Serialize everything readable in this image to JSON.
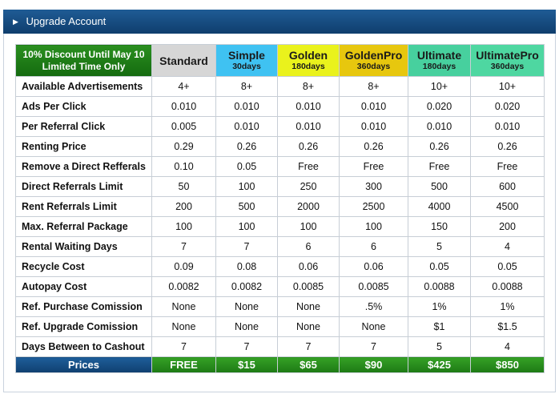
{
  "window": {
    "title": "Upgrade Account"
  },
  "colors": {
    "header_bar": "#164c82",
    "promo_green": "#1f7e16",
    "prices_blue": "#174e85"
  },
  "promo": {
    "line1": "10% Discount Until May 10",
    "line2": "Limited Time Only"
  },
  "plans": [
    {
      "name": "Standard",
      "days": ""
    },
    {
      "name": "Simple",
      "days": "30days"
    },
    {
      "name": "Golden",
      "days": "180days"
    },
    {
      "name": "GoldenPro",
      "days": "360days"
    },
    {
      "name": "Ultimate",
      "days": "180days"
    },
    {
      "name": "UltimatePro",
      "days": "360days"
    }
  ],
  "rows": [
    {
      "label": "Available Advertisements",
      "values": [
        "4+",
        "8+",
        "8+",
        "8+",
        "10+",
        "10+"
      ]
    },
    {
      "label": "Ads Per Click",
      "values": [
        "0.010",
        "0.010",
        "0.010",
        "0.010",
        "0.020",
        "0.020"
      ]
    },
    {
      "label": "Per Referral Click",
      "values": [
        "0.005",
        "0.010",
        "0.010",
        "0.010",
        "0.010",
        "0.010"
      ]
    },
    {
      "label": "Renting Price",
      "values": [
        "0.29",
        "0.26",
        "0.26",
        "0.26",
        "0.26",
        "0.26"
      ]
    },
    {
      "label": "Remove a Direct Refferals",
      "values": [
        "0.10",
        "0.05",
        "Free",
        "Free",
        "Free",
        "Free"
      ]
    },
    {
      "label": "Direct Referrals Limit",
      "values": [
        "50",
        "100",
        "250",
        "300",
        "500",
        "600"
      ]
    },
    {
      "label": "Rent Referrals Limit",
      "values": [
        "200",
        "500",
        "2000",
        "2500",
        "4000",
        "4500"
      ]
    },
    {
      "label": "Max. Referral Package",
      "values": [
        "100",
        "100",
        "100",
        "100",
        "150",
        "200"
      ]
    },
    {
      "label": "Rental Waiting Days",
      "values": [
        "7",
        "7",
        "6",
        "6",
        "5",
        "4"
      ]
    },
    {
      "label": "Recycle Cost",
      "values": [
        "0.09",
        "0.08",
        "0.06",
        "0.06",
        "0.05",
        "0.05"
      ]
    },
    {
      "label": "Autopay Cost",
      "values": [
        "0.0082",
        "0.0082",
        "0.0085",
        "0.0085",
        "0.0088",
        "0.0088"
      ]
    },
    {
      "label": "Ref. Purchase Comission",
      "values": [
        "None",
        "None",
        "None",
        ".5%",
        "1%",
        "1%"
      ]
    },
    {
      "label": "Ref. Upgrade Comission",
      "values": [
        "None",
        "None",
        "None",
        "None",
        "$1",
        "$1.5"
      ]
    },
    {
      "label": "Days Between to Cashout",
      "values": [
        "7",
        "7",
        "7",
        "7",
        "5",
        "4"
      ]
    }
  ],
  "prices": {
    "label": "Prices",
    "values": [
      "FREE",
      "$15",
      "$65",
      "$90",
      "$425",
      "$850"
    ]
  }
}
